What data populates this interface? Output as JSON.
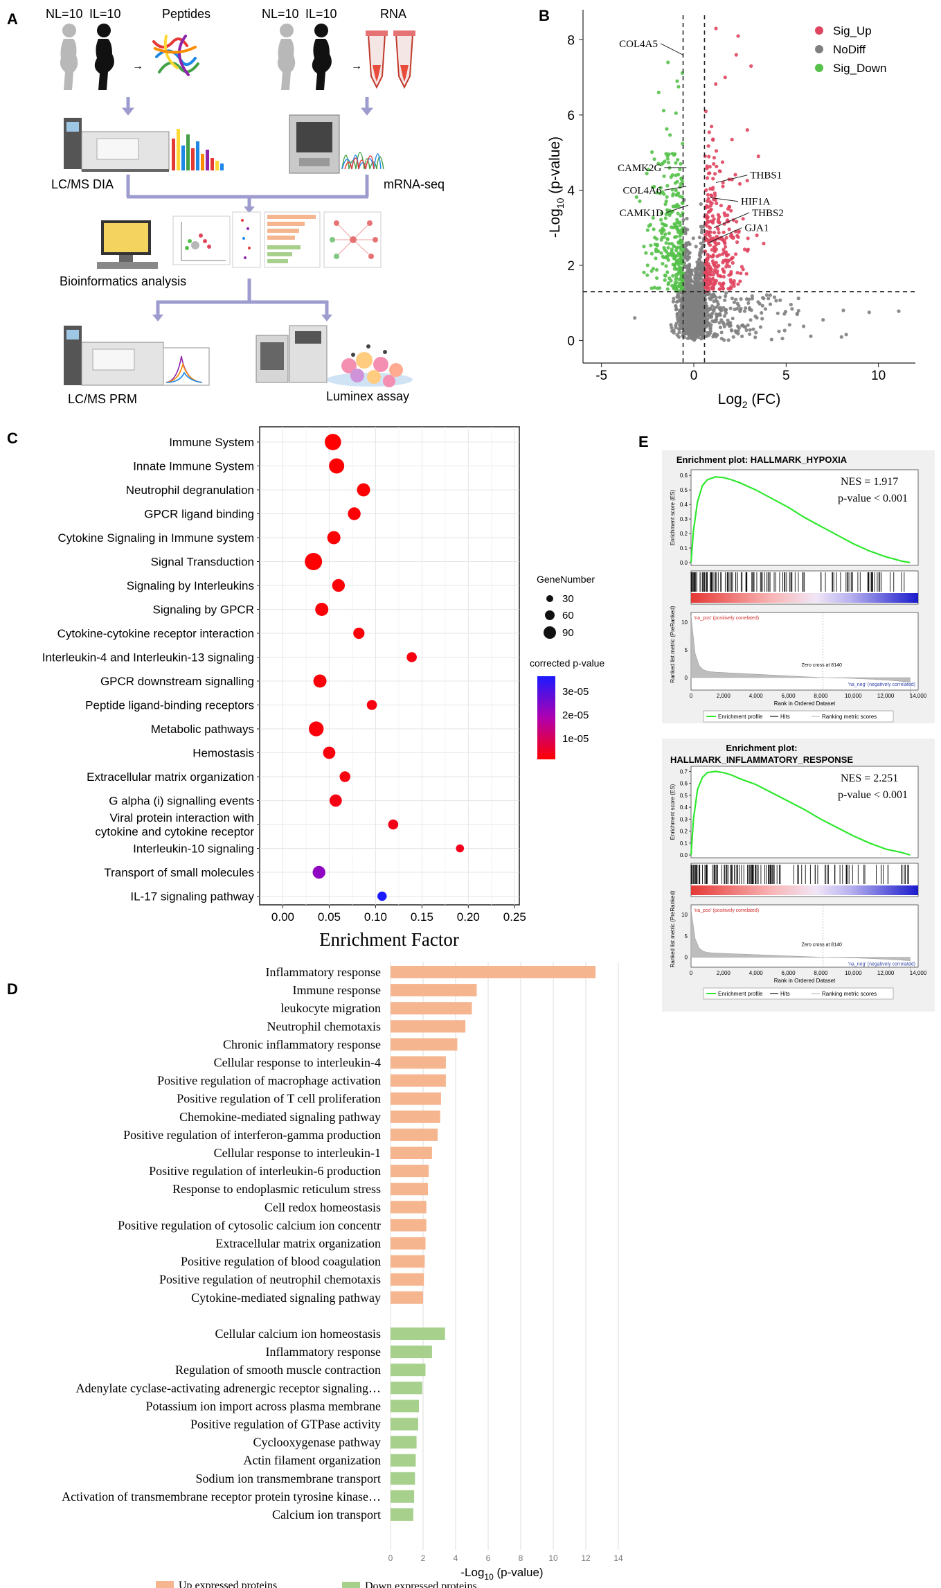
{
  "panels": {
    "A": {
      "letter": "A",
      "group1": {
        "nl": "NL=10",
        "il": "IL=10",
        "product": "Peptides",
        "assay": "LC/MS DIA"
      },
      "group2": {
        "nl": "NL=10",
        "il": "IL=10",
        "product": "RNA",
        "assay": "mRNA-seq"
      },
      "bioinformatics": "Bioinformatics analysis",
      "validation1": "LC/MS PRM",
      "validation2": "Luminex assay",
      "arrow": "→"
    },
    "B": {
      "letter": "B",
      "xlabel": "Log2 (FC)",
      "xlabel_main": "Log",
      "xlabel_sub": "2",
      "xlabel_tail": " (FC)",
      "ylabel_pre": "-Log",
      "ylabel_sub": "10",
      "ylabel_tail": " (p-value)",
      "legend": [
        {
          "label": "Sig_Up",
          "color": "#e0455f"
        },
        {
          "label": "NoDiff",
          "color": "#7f7f7f"
        },
        {
          "label": "Sig_Down",
          "color": "#55c14a"
        }
      ],
      "x_ticks": [
        "-5",
        "0",
        "5",
        "10"
      ],
      "y_ticks": [
        "0",
        "2",
        "4",
        "6",
        "8"
      ],
      "gene_labels": [
        "COL4A5",
        "CAMK2G",
        "COL4A6",
        "CAMK1D",
        "THBS1",
        "HIF1A",
        "THBS2",
        "GJA1"
      ]
    },
    "C": {
      "letter": "C",
      "xlabel": "Enrichment Factor",
      "legend_size_title": "GeneNumber",
      "legend_sizes": [
        "30",
        "60",
        "90"
      ],
      "legend_color_title": "corrected p-value",
      "legend_color_ticks": [
        "3e-05",
        "2e-05",
        "1e-05"
      ]
    },
    "D": {
      "letter": "D",
      "xlabel_pre": "-Log",
      "xlabel_sub": "10",
      "xlabel_tail": " (p-value)",
      "legend_up": "Up expressed proteins",
      "legend_down": "Down expressed proteins",
      "up_color": "#f5b58e",
      "down_color": "#a8d08d"
    },
    "E": {
      "letter": "E",
      "plots": [
        {
          "title_line1": "Enrichment plot: HALLMARK_HYPOXIA",
          "title_line2": "",
          "nes": "NES =  1.917",
          "pval": "p-value  < 0.001",
          "ymax_label": "0.6"
        },
        {
          "title_line1": "Enrichment plot:",
          "title_line2": "HALLMARK_INFLAMMATORY_RESPONSE",
          "nes": "NES = 2.251",
          "pval": "p-value  < 0.001",
          "ymax_label": "0.7"
        }
      ],
      "es_axis": "Enrichment score (ES)",
      "rank_axis": "Ranked list metric (PreRanked)",
      "pos_label": "'na_pos' (positively correlated)",
      "neg_label": "'na_neg' (negatively correlated)",
      "zero_cross": "Zero cross at 8140",
      "xaxis_title": "Rank in Ordered Dataset",
      "legend_profile": "Enrichment profile",
      "legend_hits": "Hits",
      "legend_metric": "Ranking metric scores"
    }
  },
  "chart_data": [
    {
      "id": "B",
      "type": "scatter",
      "title": "",
      "xlabel": "Log2 (FC)",
      "ylabel": "-Log10 (p-value)",
      "xlim": [
        -6,
        12
      ],
      "ylim": [
        -0.6,
        8.8
      ],
      "thresholds": {
        "x": [
          -0.58,
          0.58
        ],
        "y": 1.3
      },
      "series": [
        {
          "name": "Sig_Up",
          "color": "#e0455f"
        },
        {
          "name": "NoDiff",
          "color": "#7f7f7f"
        },
        {
          "name": "Sig_Down",
          "color": "#55c14a"
        }
      ],
      "labelled_genes": [
        {
          "gene": "COL4A5",
          "x": -0.6,
          "y": 7.6
        },
        {
          "gene": "CAMK2G",
          "x": -0.4,
          "y": 4.6
        },
        {
          "gene": "COL4A6",
          "x": -0.4,
          "y": 4.1
        },
        {
          "gene": "CAMK1D",
          "x": -0.3,
          "y": 3.6
        },
        {
          "gene": "THBS1",
          "x": 1.2,
          "y": 4.2
        },
        {
          "gene": "HIF1A",
          "x": 0.9,
          "y": 3.8
        },
        {
          "gene": "THBS2",
          "x": 1.1,
          "y": 3.0
        },
        {
          "gene": "GJA1",
          "x": 0.8,
          "y": 2.6
        }
      ]
    },
    {
      "id": "C",
      "type": "scatter",
      "xlabel": "Enrichment Factor",
      "x_ticks": [
        "0.00",
        "0.05",
        "0.10",
        "0.15",
        "0.20",
        "0.25"
      ],
      "xlim": [
        -0.025,
        0.255
      ],
      "categories": [
        "Immune System",
        "Innate Immune System",
        "Neutrophil degranulation",
        "GPCR ligand binding",
        "Cytokine Signaling in Immune system",
        "Signal Transduction",
        "Signaling by Interleukins",
        "Signaling by GPCR",
        "Cytokine-cytokine receptor interaction",
        "Interleukin-4 and Interleukin-13 signaling",
        "GPCR downstream signalling",
        "Peptide ligand-binding receptors",
        "Metabolic pathways",
        "Hemostasis",
        "Extracellular matrix organization",
        "G alpha (i) signalling events",
        "Viral protein interaction with cytokine and cytokine receptor",
        "Interleukin-10 signaling",
        "Transport of small molecules",
        "IL-17 signaling pathway"
      ],
      "label_lines": [
        [
          "Immune System"
        ],
        [
          "Innate Immune System"
        ],
        [
          "Neutrophil degranulation"
        ],
        [
          "GPCR ligand binding"
        ],
        [
          "Cytokine Signaling in Immune system"
        ],
        [
          "Signal Transduction"
        ],
        [
          "Signaling by Interleukins"
        ],
        [
          "Signaling by GPCR"
        ],
        [
          "Cytokine-cytokine receptor interaction"
        ],
        [
          "Interleukin-4 and Interleukin-13 signaling"
        ],
        [
          "GPCR downstream signalling"
        ],
        [
          "Peptide ligand-binding receptors"
        ],
        [
          "Metabolic pathways"
        ],
        [
          "Hemostasis"
        ],
        [
          "Extracellular matrix organization"
        ],
        [
          "G alpha (i) signalling events"
        ],
        [
          "Viral protein interaction with",
          "cytokine and cytokine receptor"
        ],
        [
          "Interleukin-10 signaling"
        ],
        [
          "Transport of small molecules"
        ],
        [
          "IL-17 signaling pathway"
        ]
      ],
      "enrichment_factor": [
        0.054,
        0.058,
        0.087,
        0.077,
        0.055,
        0.033,
        0.06,
        0.042,
        0.082,
        0.139,
        0.04,
        0.096,
        0.036,
        0.05,
        0.067,
        0.057,
        0.119,
        0.191,
        0.039,
        0.107
      ],
      "gene_number": [
        95,
        80,
        55,
        50,
        55,
        110,
        50,
        55,
        35,
        25,
        55,
        25,
        75,
        45,
        30,
        45,
        25,
        12,
        50,
        20
      ],
      "corrected_p": [
        2e-07,
        3e-07,
        5e-07,
        6e-07,
        4e-07,
        3e-07,
        5e-07,
        7e-07,
        8e-07,
        1.5e-06,
        9e-07,
        1.5e-06,
        1e-06,
        1.2e-06,
        1.5e-06,
        2e-06,
        2.5e-06,
        3e-06,
        2.2e-05,
        3.6e-05
      ]
    },
    {
      "id": "D",
      "type": "bar",
      "orientation": "horizontal",
      "xlabel": "-Log10 (p-value)",
      "x_ticks": [
        "0",
        "2",
        "4",
        "6",
        "8",
        "10",
        "12",
        "14"
      ],
      "xlim": [
        0,
        14
      ],
      "series": [
        {
          "name": "Up expressed proteins",
          "categories": [
            "Inflammatory response",
            "Immune response",
            "leukocyte migration",
            "Neutrophil chemotaxis",
            "Chronic inflammatory response",
            "Cellular response to interleukin-4",
            "Positive regulation of macrophage activation",
            "Positive regulation of T cell proliferation",
            "Chemokine-mediated signaling pathway",
            "Positive regulation of interferon-gamma production",
            "Cellular response to interleukin-1",
            "Positive regulation of interleukin-6 production",
            "Response to endoplasmic reticulum stress",
            "Cell redox homeostasis",
            "Positive regulation of cytosolic calcium ion concentr",
            "Extracellular matrix organization",
            "Positive regulation of blood coagulation",
            "Positive regulation of neutrophil chemotaxis",
            "Cytokine-mediated signaling pathway"
          ],
          "values": [
            12.6,
            5.3,
            5.0,
            4.6,
            4.1,
            3.4,
            3.4,
            3.1,
            3.05,
            2.9,
            2.55,
            2.35,
            2.3,
            2.2,
            2.2,
            2.15,
            2.1,
            2.05,
            2.0
          ]
        },
        {
          "name": "Down expressed proteins",
          "categories": [
            "Cellular calcium ion homeostasis",
            "Inflammatory response",
            "Regulation of smooth muscle contraction",
            "Adenylate cyclase-activating adrenergic receptor signaling…",
            "Potassium ion import across plasma membrane",
            "Positive regulation of GTPase activity",
            "Cyclooxygenase pathway",
            "Actin filament organization",
            "Sodium ion transmembrane transport",
            "Activation of transmembrane receptor protein tyrosine kinase…",
            "Calcium ion transport"
          ],
          "values": [
            3.35,
            2.55,
            2.15,
            1.95,
            1.75,
            1.7,
            1.6,
            1.55,
            1.5,
            1.45,
            1.4
          ]
        }
      ]
    },
    {
      "id": "E",
      "type": "line",
      "xlabel": "Rank in Ordered Dataset",
      "x_ticks": [
        "0",
        "2,000",
        "4,000",
        "6,000",
        "8,000",
        "10,000",
        "12,000",
        "14,000"
      ],
      "xlim": [
        0,
        14000
      ],
      "plots": [
        {
          "name": "HALLMARK_HYPOXIA",
          "es_ticks": [
            "0.0",
            "0.1",
            "0.2",
            "0.3",
            "0.4",
            "0.5",
            "0.6"
          ],
          "es_max": 0.6,
          "x": [
            0,
            150,
            400,
            700,
            1000,
            1500,
            2000,
            2500,
            3000,
            4000,
            5000,
            6000,
            7000,
            8000,
            9000,
            10000,
            11000,
            12000,
            13000,
            13500
          ],
          "es": [
            0.0,
            0.22,
            0.42,
            0.53,
            0.57,
            0.59,
            0.585,
            0.57,
            0.55,
            0.5,
            0.44,
            0.38,
            0.31,
            0.25,
            0.19,
            0.13,
            0.08,
            0.04,
            0.01,
            0.0
          ]
        },
        {
          "name": "HALLMARK_INFLAMMATORY_RESPONSE",
          "es_ticks": [
            "0.0",
            "0.1",
            "0.2",
            "0.3",
            "0.4",
            "0.5",
            "0.6",
            "0.7"
          ],
          "es_max": 0.7,
          "x": [
            0,
            150,
            400,
            700,
            1000,
            1500,
            2000,
            2500,
            3000,
            4000,
            5000,
            6000,
            7000,
            8000,
            9000,
            10000,
            11000,
            12000,
            13000,
            13500
          ],
          "es": [
            0.0,
            0.3,
            0.55,
            0.65,
            0.69,
            0.7,
            0.69,
            0.67,
            0.64,
            0.59,
            0.52,
            0.45,
            0.38,
            0.3,
            0.23,
            0.16,
            0.1,
            0.05,
            0.02,
            0.0
          ]
        }
      ],
      "metric_ticks": [
        "10",
        "5",
        "0"
      ]
    }
  ]
}
